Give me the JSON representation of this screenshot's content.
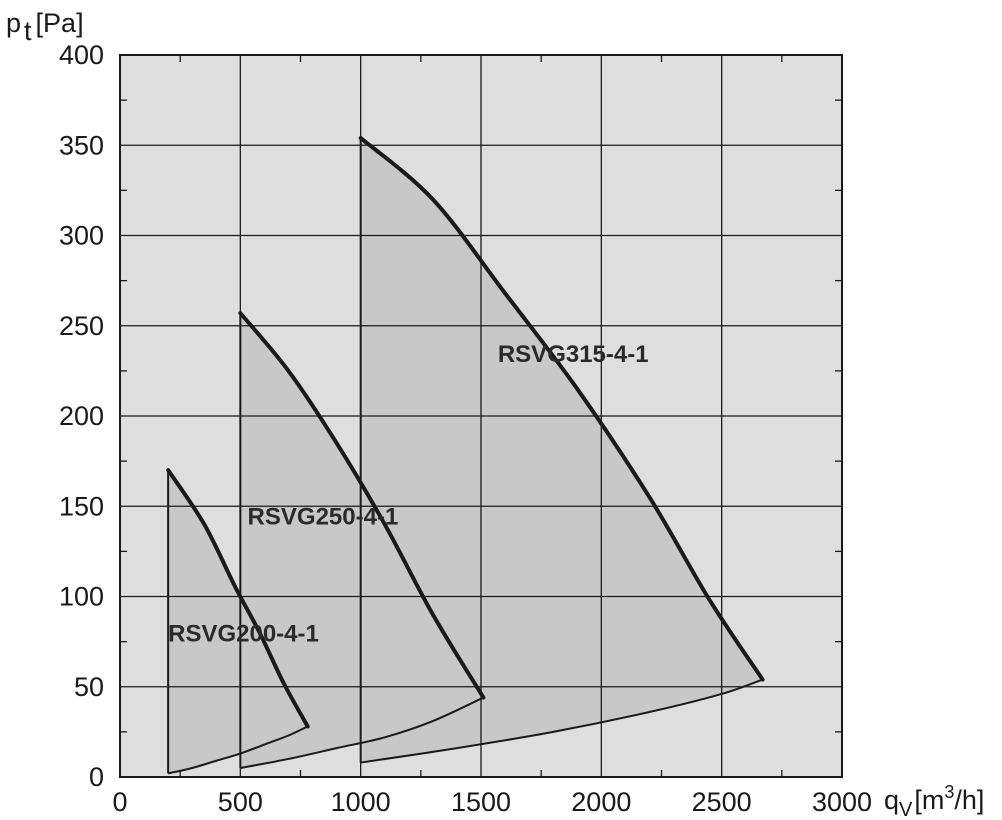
{
  "chart_data": {
    "type": "area",
    "xlim": [
      0,
      3000
    ],
    "ylim": [
      0,
      400
    ],
    "x_ticks": [
      "0",
      "500",
      "1000",
      "1500",
      "2000",
      "2500",
      "3000"
    ],
    "y_ticks": [
      "0",
      "50",
      "100",
      "150",
      "200",
      "250",
      "300",
      "350",
      "400"
    ],
    "x_tick_values": [
      0,
      500,
      1000,
      1500,
      2000,
      2500,
      3000
    ],
    "y_tick_values": [
      0,
      50,
      100,
      150,
      200,
      250,
      300,
      350,
      400
    ],
    "xlabel": {
      "base": "q",
      "sub": "V",
      "unit_prefix": "[m",
      "sup": "3",
      "unit_suffix": "/h]"
    },
    "ylabel": {
      "base": "p",
      "sub": "t",
      "unit": "[Pa]"
    },
    "grid": true,
    "series": [
      {
        "name": "RSVG200-4-1",
        "upper": [
          [
            200,
            170
          ],
          [
            350,
            140
          ],
          [
            480,
            105
          ],
          [
            580,
            80
          ],
          [
            680,
            52
          ],
          [
            780,
            28
          ]
        ],
        "lower": [
          [
            200,
            2
          ],
          [
            300,
            5
          ],
          [
            400,
            9
          ],
          [
            500,
            13
          ],
          [
            600,
            18
          ],
          [
            700,
            23
          ],
          [
            780,
            28
          ]
        ]
      },
      {
        "name": "RSVG250-4-1",
        "upper": [
          [
            500,
            257
          ],
          [
            700,
            225
          ],
          [
            900,
            185
          ],
          [
            1100,
            140
          ],
          [
            1300,
            90
          ],
          [
            1510,
            44
          ]
        ],
        "lower": [
          [
            500,
            5
          ],
          [
            700,
            10
          ],
          [
            900,
            16
          ],
          [
            1100,
            22
          ],
          [
            1300,
            31
          ],
          [
            1510,
            44
          ]
        ]
      },
      {
        "name": "RSVG315-4-1",
        "upper": [
          [
            1000,
            354
          ],
          [
            1300,
            320
          ],
          [
            1600,
            268
          ],
          [
            1900,
            215
          ],
          [
            2200,
            155
          ],
          [
            2450,
            98
          ],
          [
            2670,
            54
          ]
        ],
        "lower": [
          [
            1000,
            8
          ],
          [
            1400,
            16
          ],
          [
            1800,
            25
          ],
          [
            2200,
            36
          ],
          [
            2500,
            46
          ],
          [
            2670,
            54
          ]
        ]
      }
    ],
    "labels": [
      {
        "text": "RSVG200-4-1",
        "x": 200,
        "y": 75
      },
      {
        "text": "RSVG250-4-1",
        "x": 530,
        "y": 140
      },
      {
        "text": "RSVG315-4-1",
        "x": 1570,
        "y": 230
      }
    ],
    "colors": {
      "plot_background": "#dedede",
      "region_fill": "#c8c8c8",
      "curve": "#1a1a1a",
      "grid": "#1a1a1a"
    }
  }
}
